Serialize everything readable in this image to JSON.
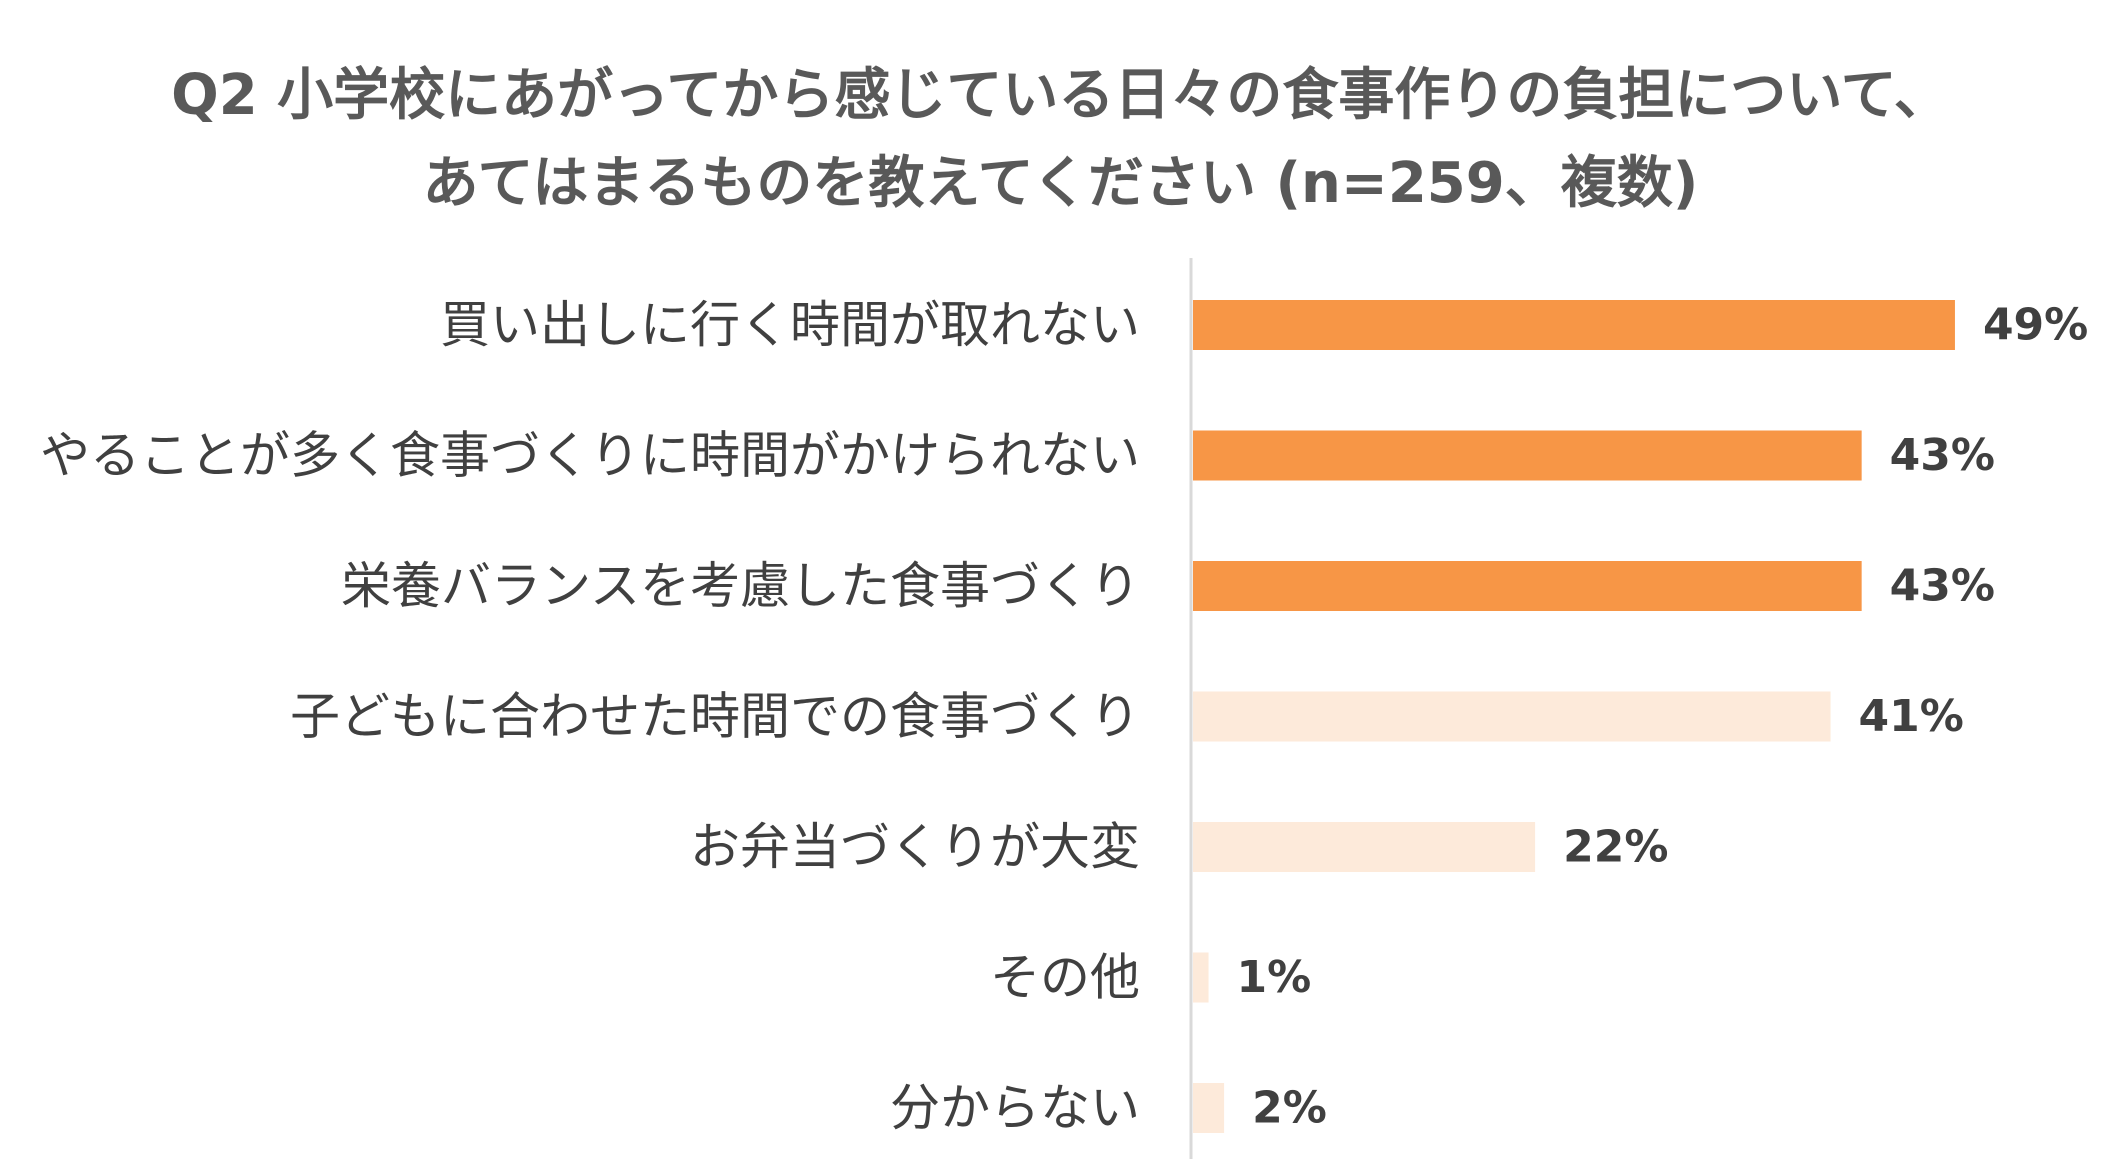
{
  "chart_data": {
    "type": "bar",
    "orientation": "horizontal",
    "title_lines": [
      "Q2 小学校にあがってから感じている日々の食事作りの負担について、",
      "あてはまるものを教えてください (n=259、複数)"
    ],
    "categories": [
      "買い出しに行く時間が取れない",
      "やることが多く食事づくりに時間がかけられない",
      "栄養バランスを考慮した食事づくり",
      "子どもに合わせた時間での食事づくり",
      "お弁当づくりが大変",
      "その他",
      "分からない"
    ],
    "values": [
      49,
      43,
      43,
      41,
      22,
      1,
      2
    ],
    "value_labels": [
      "49%",
      "43%",
      "43%",
      "41%",
      "22%",
      "1%",
      "2%"
    ],
    "highlighted": [
      true,
      true,
      true,
      false,
      false,
      false,
      false
    ],
    "colors": {
      "highlight": "#F79646",
      "normal": "#FDEADA",
      "axis": "#D9D9D9"
    },
    "xlim": [
      0,
      50
    ],
    "grid": false,
    "legend": "none"
  }
}
